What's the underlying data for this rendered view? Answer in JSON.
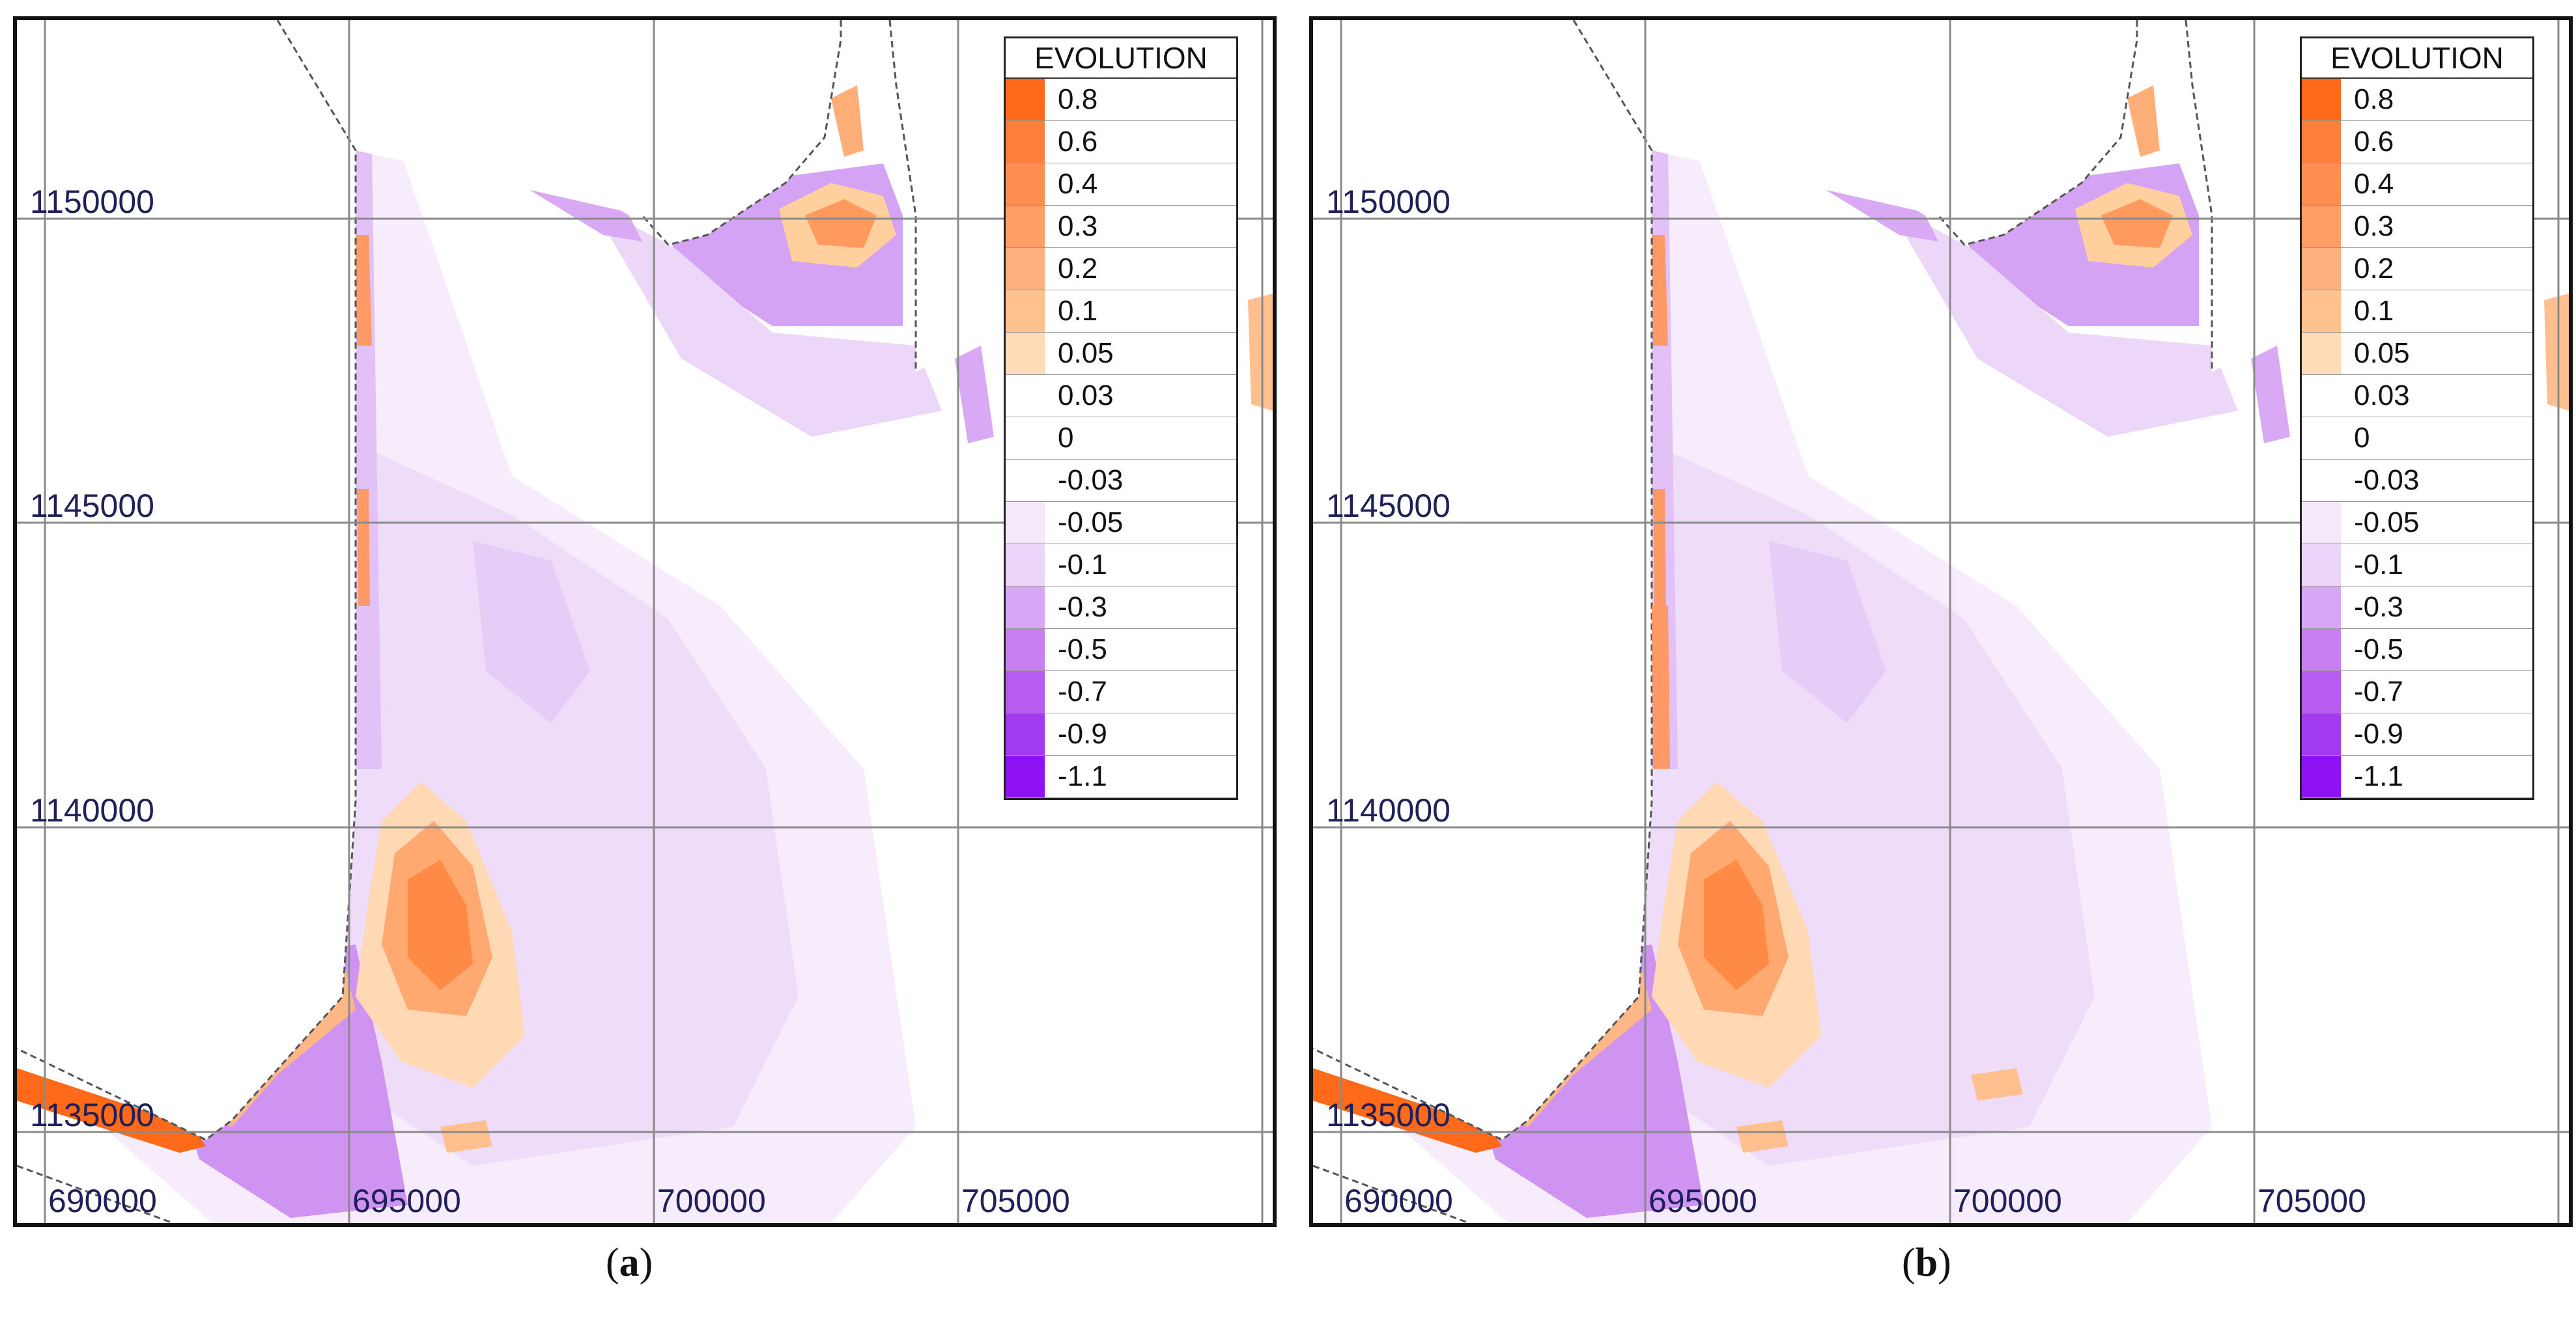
{
  "panels": [
    {
      "id": "a",
      "label_open": "(",
      "label_letter": "a",
      "label_close": ")",
      "y_labels": [
        "1150000",
        "1145000",
        "1140000",
        "1135000"
      ],
      "x_labels": [
        "690000",
        "695000",
        "700000",
        "705000"
      ],
      "legend": {
        "title": "EVOLUTION",
        "entries": [
          {
            "label": "0.8",
            "color": "#ff6a1a"
          },
          {
            "label": "0.6",
            "color": "#ff7f3a"
          },
          {
            "label": "0.4",
            "color": "#ff8f50"
          },
          {
            "label": "0.3",
            "color": "#ff9e66"
          },
          {
            "label": "0.2",
            "color": "#ffb07e"
          },
          {
            "label": "0.1",
            "color": "#ffc28f"
          },
          {
            "label": "0.05",
            "color": "#ffdcb7"
          },
          {
            "label": "0.03",
            "color": "#ffffff"
          },
          {
            "label": "0",
            "color": "#ffffff"
          },
          {
            "label": "-0.03",
            "color": "#ffffff"
          },
          {
            "label": "-0.05",
            "color": "#f5e8fb"
          },
          {
            "label": "-0.1",
            "color": "#ecd5f8"
          },
          {
            "label": "-0.3",
            "color": "#d7a7f5"
          },
          {
            "label": "-0.5",
            "color": "#c77ff2"
          },
          {
            "label": "-0.7",
            "color": "#b65cf0"
          },
          {
            "label": "-0.9",
            "color": "#a23af0"
          },
          {
            "label": "-1.1",
            "color": "#8f12f2"
          }
        ]
      }
    },
    {
      "id": "b",
      "label_open": "(",
      "label_letter": "b",
      "label_close": ")",
      "y_labels": [
        "1150000",
        "1145000",
        "1140000",
        "1135000"
      ],
      "x_labels": [
        "690000",
        "695000",
        "700000",
        "705000"
      ],
      "legend": {
        "title": "EVOLUTION",
        "entries": [
          {
            "label": "0.8",
            "color": "#ff6a1a"
          },
          {
            "label": "0.6",
            "color": "#ff7f3a"
          },
          {
            "label": "0.4",
            "color": "#ff8f50"
          },
          {
            "label": "0.3",
            "color": "#ff9e66"
          },
          {
            "label": "0.2",
            "color": "#ffb07e"
          },
          {
            "label": "0.1",
            "color": "#ffc28f"
          },
          {
            "label": "0.05",
            "color": "#ffdcb7"
          },
          {
            "label": "0.03",
            "color": "#ffffff"
          },
          {
            "label": "0",
            "color": "#ffffff"
          },
          {
            "label": "-0.03",
            "color": "#ffffff"
          },
          {
            "label": "-0.05",
            "color": "#f5e8fb"
          },
          {
            "label": "-0.1",
            "color": "#ecd5f8"
          },
          {
            "label": "-0.3",
            "color": "#d7a7f5"
          },
          {
            "label": "-0.5",
            "color": "#c77ff2"
          },
          {
            "label": "-0.7",
            "color": "#b65cf0"
          },
          {
            "label": "-0.9",
            "color": "#a23af0"
          },
          {
            "label": "-1.1",
            "color": "#8f12f2"
          }
        ]
      }
    }
  ]
}
